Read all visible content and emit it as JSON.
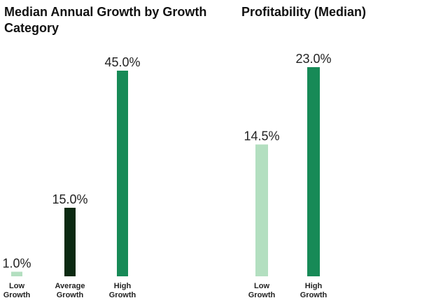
{
  "chart_data": [
    {
      "type": "bar",
      "title": "Median Annual Growth by Growth Category",
      "categories": [
        [
          "Low",
          "Growth"
        ],
        [
          "Average",
          "Growth"
        ],
        [
          "High",
          "Growth"
        ]
      ],
      "values": [
        1.0,
        15.0,
        45.0
      ],
      "data_labels": [
        "1.0%",
        "15.0%",
        "45.0%"
      ],
      "colors": [
        "#b3dfc0",
        "#0b2a12",
        "#178a57"
      ],
      "ylim": [
        0,
        45
      ],
      "grid": false,
      "xlabel": "",
      "ylabel": ""
    },
    {
      "type": "bar",
      "title": "Profitability (Median)",
      "categories": [
        [
          "Low",
          "Growth"
        ],
        [
          "High",
          "Growth"
        ]
      ],
      "values": [
        14.5,
        23.0
      ],
      "data_labels": [
        "14.5%",
        "23.0%"
      ],
      "colors": [
        "#b3dfc0",
        "#178a57"
      ],
      "ylim": [
        0,
        23
      ],
      "grid": false,
      "xlabel": "",
      "ylabel": ""
    }
  ]
}
